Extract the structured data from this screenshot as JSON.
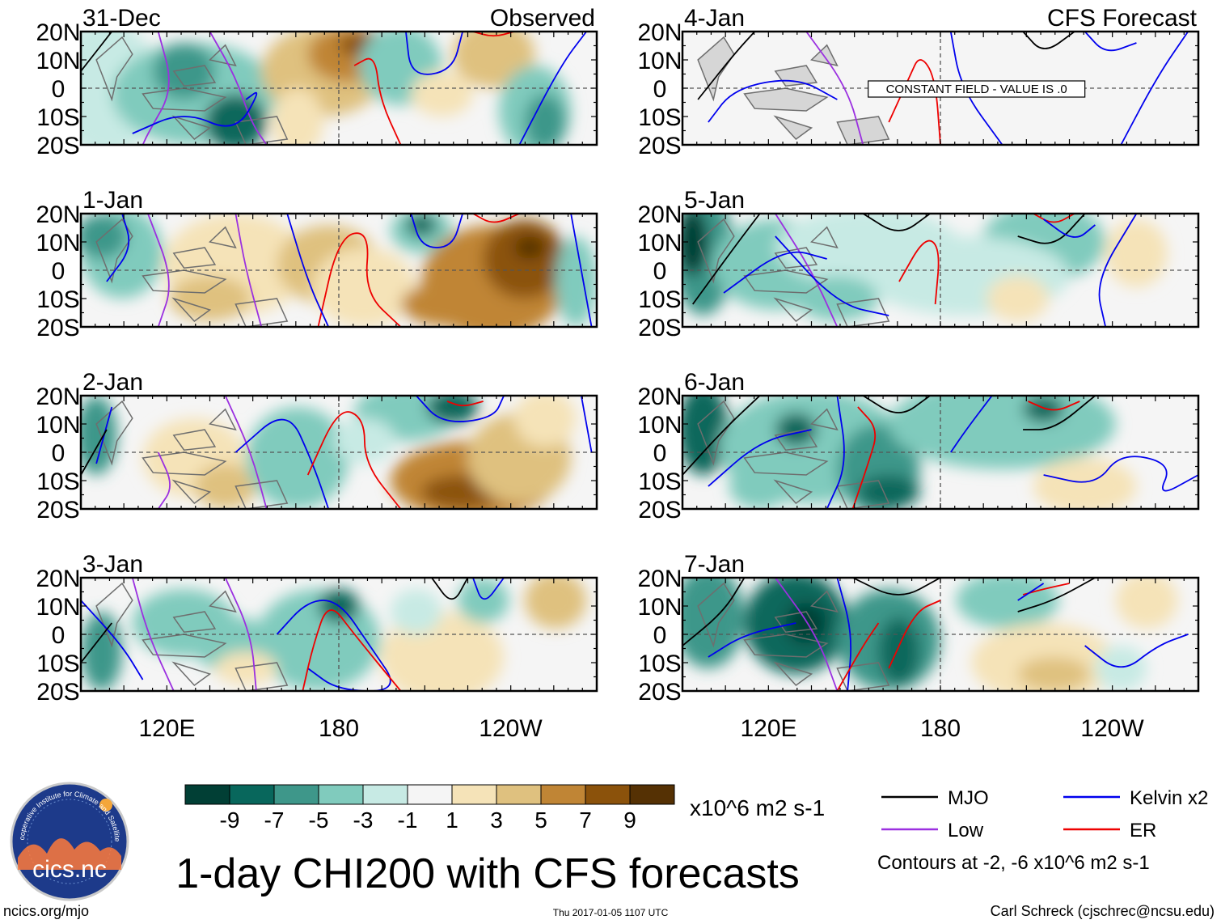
{
  "chart_data": {
    "type": "heatmap",
    "title": "1-day CHI200 with CFS forecasts",
    "variable": "CHI200",
    "units": "x10^6 m2 s-1",
    "columns": [
      "Observed",
      "CFS Forecast"
    ],
    "lat_ticks": [
      "20N",
      "10N",
      "0",
      "10S",
      "20S"
    ],
    "lon_ticks": [
      "120E",
      "180",
      "120W"
    ],
    "lat_range": [
      -20,
      20
    ],
    "lon_range": [
      "90E",
      "90W"
    ],
    "panels": [
      {
        "date": "31-Dec",
        "column": "Observed",
        "note": ""
      },
      {
        "date": "1-Jan",
        "column": "Observed",
        "note": ""
      },
      {
        "date": "2-Jan",
        "column": "Observed",
        "note": ""
      },
      {
        "date": "3-Jan",
        "column": "Observed",
        "note": ""
      },
      {
        "date": "4-Jan",
        "column": "CFS Forecast",
        "note": "CONSTANT FIELD - VALUE IS .0"
      },
      {
        "date": "5-Jan",
        "column": "CFS Forecast",
        "note": ""
      },
      {
        "date": "6-Jan",
        "column": "CFS Forecast",
        "note": ""
      },
      {
        "date": "7-Jan",
        "column": "CFS Forecast",
        "note": ""
      }
    ],
    "colorbar": {
      "labels": [
        "-9",
        "-7",
        "-5",
        "-3",
        "-1",
        "1",
        "3",
        "5",
        "7",
        "9"
      ],
      "colors": [
        "#013f35",
        "#08675c",
        "#3e978a",
        "#80cbbd",
        "#c7eae4",
        "#f5f5f5",
        "#f5e3b8",
        "#dfc17f",
        "#c08535",
        "#8b520b",
        "#553104"
      ],
      "units": "x10^6 m2 s-1"
    },
    "legend": [
      {
        "label": "MJO",
        "color": "#000000"
      },
      {
        "label": "Kelvin x2",
        "color": "#0000ee"
      },
      {
        "label": "Low",
        "color": "#9b30e0"
      },
      {
        "label": "ER",
        "color": "#ee0000"
      }
    ],
    "contour_note": "Contours at -2, -6 x10^6 m2 s-1"
  },
  "footer": {
    "site": "ncics.org/mjo",
    "timestamp": "Thu 2017-01-05 1107 UTC",
    "author": "Carl Schreck (cjschrec@ncsu.edu)",
    "logo_text": "cics.nc",
    "logo_ring_text": "Cooperative Institute for Climate and Satellites"
  }
}
